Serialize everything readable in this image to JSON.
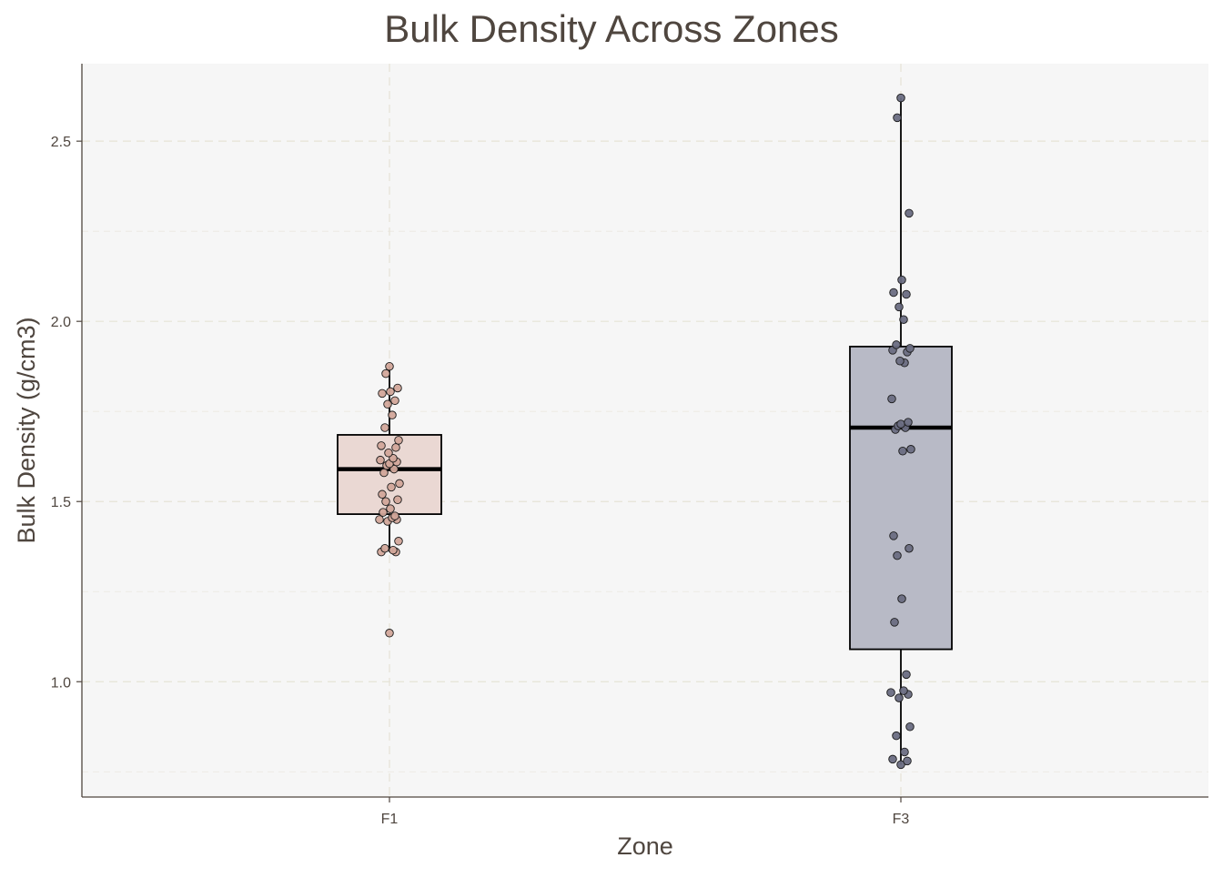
{
  "chart_data": {
    "type": "boxplot",
    "title": "Bulk Density Across Zones",
    "xlabel": "Zone",
    "ylabel": "Bulk Density (g/cm3)",
    "categories": [
      "F1",
      "F3"
    ],
    "ylim": [
      0.68,
      2.715
    ],
    "yticks": [
      1.0,
      1.5,
      2.0,
      2.5
    ],
    "ytick_labels": [
      "1.0",
      "1.5",
      "2.0",
      "2.5"
    ],
    "grid": true,
    "legend": "none",
    "series": [
      {
        "category": "F1",
        "box_color": "#ead8d3",
        "point_color": "#d2a79a",
        "whisker_low": 1.36,
        "q1": 1.465,
        "median": 1.59,
        "q3": 1.685,
        "whisker_high": 1.875,
        "points": [
          1.135,
          1.36,
          1.36,
          1.365,
          1.37,
          1.39,
          1.445,
          1.45,
          1.45,
          1.455,
          1.46,
          1.47,
          1.48,
          1.5,
          1.505,
          1.52,
          1.54,
          1.55,
          1.58,
          1.59,
          1.6,
          1.605,
          1.61,
          1.615,
          1.62,
          1.635,
          1.65,
          1.655,
          1.67,
          1.705,
          1.74,
          1.77,
          1.78,
          1.8,
          1.805,
          1.815,
          1.855,
          1.875
        ]
      },
      {
        "category": "F3",
        "box_color": "#b8bac6",
        "point_color": "#6a6d82",
        "whisker_low": 0.77,
        "q1": 1.09,
        "median": 1.705,
        "q3": 1.93,
        "whisker_high": 2.62,
        "points": [
          0.77,
          0.78,
          0.785,
          0.805,
          0.85,
          0.875,
          0.955,
          0.965,
          0.97,
          0.975,
          1.02,
          1.165,
          1.23,
          1.35,
          1.37,
          1.405,
          1.64,
          1.645,
          1.7,
          1.705,
          1.71,
          1.715,
          1.72,
          1.785,
          1.885,
          1.89,
          1.915,
          1.92,
          1.925,
          1.935,
          2.005,
          2.04,
          2.075,
          2.08,
          2.115,
          2.3,
          2.565,
          2.62
        ]
      }
    ]
  }
}
